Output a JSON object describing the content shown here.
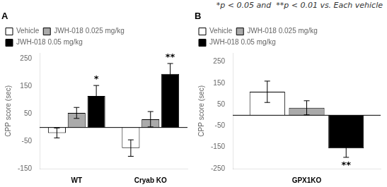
{
  "title": "*p < 0.05 and  **p < 0.01 vs. Each vehicle",
  "chart_data": [
    {
      "type": "bar",
      "title": "A",
      "categories": [
        "WT",
        "Cryab KO"
      ],
      "series": [
        {
          "name": "Vehicle",
          "color": "white",
          "values": [
            -20,
            -75
          ],
          "errors": [
            18,
            30
          ]
        },
        {
          "name": "JWH-018 0.025 mg/kg",
          "color": "#aaaaaa",
          "values": [
            53,
            30
          ],
          "errors": [
            20,
            28
          ]
        },
        {
          "name": "JWH-018 0.05 mg/kg",
          "color": "black",
          "values": [
            115,
            195
          ],
          "errors": [
            38,
            38
          ]
        }
      ],
      "ylabel": "CPP score (sec)",
      "ylim": [
        -150,
        270
      ],
      "yticks": [
        -150,
        -50,
        50,
        150,
        250
      ],
      "grid": false,
      "legend": "upper left",
      "hline": 0,
      "annotations": [
        {
          "text": "*",
          "category": "WT",
          "series": "JWH-018 0.05 mg/kg",
          "y": 158
        },
        {
          "text": "**",
          "category": "Cryab KO",
          "series": "JWH-018 0.05 mg/kg",
          "y": 238
        }
      ]
    },
    {
      "type": "bar",
      "title": "B",
      "categories": [
        "GPX1KO"
      ],
      "series": [
        {
          "name": "Vehicle",
          "color": "white",
          "values": [
            110
          ],
          "errors": [
            50
          ]
        },
        {
          "name": "JWH-018 0.025 mg/kg",
          "color": "#aaaaaa",
          "values": [
            35
          ],
          "errors": [
            33
          ]
        },
        {
          "name": "JWH-018 0.05 mg/kg",
          "color": "black",
          "values": [
            -155
          ],
          "errors": [
            42
          ]
        }
      ],
      "ylabel": "CPP score (sec)",
      "ylim": [
        -250,
        290
      ],
      "yticks": [
        -250,
        -150,
        -50,
        50,
        150,
        250
      ],
      "grid": false,
      "legend": "upper left",
      "hline": 0,
      "annotations": [
        {
          "text": "**",
          "category": "GPX1KO",
          "series": "JWH-018 0.05 mg/kg",
          "y": -215
        }
      ]
    }
  ]
}
